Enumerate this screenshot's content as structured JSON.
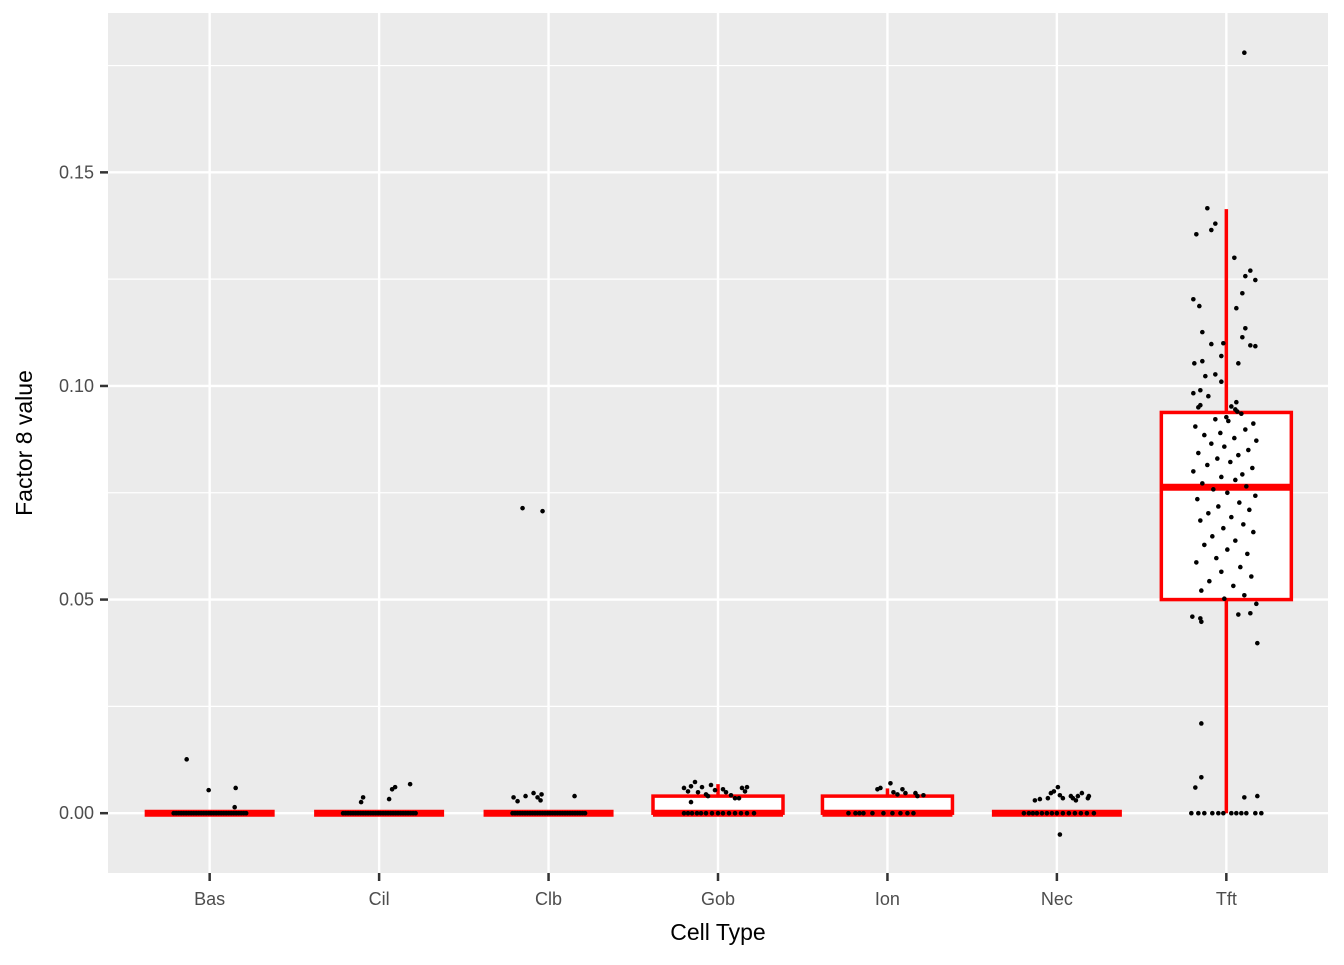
{
  "figure": {
    "xlabel": "Cell Type",
    "ylabel": "Factor 8 value"
  },
  "chart_data": {
    "type": "boxplot",
    "title": "",
    "xlabel": "Cell Type",
    "ylabel": "Factor 8 value",
    "legend": false,
    "grid": true,
    "panel_bg": "#EBEBEB",
    "grid_color": "#FFFFFF",
    "box_color": "#FF0000",
    "box_fill": "#FFFFFF",
    "point_color": "#000000",
    "tick_text_color": "#4D4D4D",
    "categories": [
      "Bas",
      "Cil",
      "Clb",
      "Gob",
      "Ion",
      "Nec",
      "Tft"
    ],
    "ytick_labels": [
      "0.00",
      "0.05",
      "0.10",
      "0.15"
    ],
    "ytick_values": [
      0.0,
      0.05,
      0.1,
      0.15
    ],
    "yminor_values": [
      0.025,
      0.075,
      0.125,
      0.175
    ],
    "ylim": [
      -0.014,
      0.1873
    ],
    "boxes": [
      {
        "category": "Bas",
        "whisker_low": 0.0,
        "q1": 0.0,
        "median": 0.0,
        "q3": 0.0,
        "whisker_high": 0.0
      },
      {
        "category": "Cil",
        "whisker_low": 0.0,
        "q1": 0.0,
        "median": 0.0,
        "q3": 0.0,
        "whisker_high": 0.0
      },
      {
        "category": "Clb",
        "whisker_low": 0.0,
        "q1": 0.0,
        "median": 0.0,
        "q3": 0.0,
        "whisker_high": 0.0
      },
      {
        "category": "Gob",
        "whisker_low": 0.0,
        "q1": 0.0,
        "median": 0.0,
        "q3": 0.004,
        "whisker_high": 0.0068
      },
      {
        "category": "Ion",
        "whisker_low": 0.0,
        "q1": 0.0,
        "median": 0.0,
        "q3": 0.004,
        "whisker_high": 0.0058
      },
      {
        "category": "Nec",
        "whisker_low": 0.0,
        "q1": 0.0,
        "median": 0.0,
        "q3": 0.0,
        "whisker_high": 0.0
      },
      {
        "category": "Tft",
        "whisker_low": 0.0,
        "q1": 0.05,
        "median": 0.0763,
        "q3": 0.0938,
        "whisker_high": 0.1414
      }
    ],
    "jitter_points": {
      "Bas": [
        [
          -36,
          0
        ],
        [
          -33.5,
          0
        ],
        [
          -31,
          0
        ],
        [
          -28.5,
          0
        ],
        [
          -26,
          0
        ],
        [
          -23.5,
          0
        ],
        [
          -21,
          0
        ],
        [
          -18.5,
          0
        ],
        [
          -16,
          0
        ],
        [
          -13.5,
          0
        ],
        [
          -11,
          0
        ],
        [
          -8.5,
          0
        ],
        [
          -6,
          0
        ],
        [
          -3.5,
          0
        ],
        [
          -1,
          0
        ],
        [
          1.5,
          0
        ],
        [
          4,
          0
        ],
        [
          6.5,
          0
        ],
        [
          9,
          0
        ],
        [
          11.5,
          0
        ],
        [
          14,
          0
        ],
        [
          16.5,
          0
        ],
        [
          19,
          0
        ],
        [
          21.5,
          0
        ],
        [
          24,
          0
        ],
        [
          26.5,
          0
        ],
        [
          29,
          0
        ],
        [
          31.5,
          0
        ],
        [
          34,
          0
        ],
        [
          36.5,
          0
        ],
        [
          -23,
          0.0126
        ],
        [
          -1,
          0.0054
        ],
        [
          26,
          0.0059
        ],
        [
          25,
          0.0014
        ]
      ],
      "Cil": [
        [
          -36,
          0
        ],
        [
          -33.5,
          0
        ],
        [
          -31,
          0
        ],
        [
          -28.5,
          0
        ],
        [
          -26,
          0
        ],
        [
          -23.5,
          0
        ],
        [
          -21,
          0
        ],
        [
          -18.5,
          0
        ],
        [
          -16,
          0
        ],
        [
          -13.5,
          0
        ],
        [
          -11,
          0
        ],
        [
          -8.5,
          0
        ],
        [
          -6,
          0
        ],
        [
          -3.5,
          0
        ],
        [
          -1,
          0
        ],
        [
          1.5,
          0
        ],
        [
          4,
          0
        ],
        [
          6.5,
          0
        ],
        [
          9,
          0
        ],
        [
          11.5,
          0
        ],
        [
          14,
          0
        ],
        [
          16.5,
          0
        ],
        [
          19,
          0
        ],
        [
          21.5,
          0
        ],
        [
          24,
          0
        ],
        [
          26.5,
          0
        ],
        [
          29,
          0
        ],
        [
          31.5,
          0
        ],
        [
          34,
          0
        ],
        [
          36.5,
          0
        ],
        [
          -18,
          0.0026
        ],
        [
          -16,
          0.0037
        ],
        [
          10,
          0.0033
        ],
        [
          13,
          0.0056
        ],
        [
          16,
          0.0061
        ],
        [
          31,
          0.0068
        ]
      ],
      "Clb": [
        [
          -36,
          0
        ],
        [
          -33.5,
          0
        ],
        [
          -31,
          0
        ],
        [
          -28.5,
          0
        ],
        [
          -26,
          0
        ],
        [
          -23.5,
          0
        ],
        [
          -21,
          0
        ],
        [
          -18.5,
          0
        ],
        [
          -16,
          0
        ],
        [
          -13.5,
          0
        ],
        [
          -11,
          0
        ],
        [
          -8.5,
          0
        ],
        [
          -6,
          0
        ],
        [
          -3.5,
          0
        ],
        [
          -1,
          0
        ],
        [
          1.5,
          0
        ],
        [
          4,
          0
        ],
        [
          6.5,
          0
        ],
        [
          9,
          0
        ],
        [
          11.5,
          0
        ],
        [
          14,
          0
        ],
        [
          16.5,
          0
        ],
        [
          19,
          0
        ],
        [
          21.5,
          0
        ],
        [
          24,
          0
        ],
        [
          26.5,
          0
        ],
        [
          29,
          0
        ],
        [
          31.5,
          0
        ],
        [
          34,
          0
        ],
        [
          36.5,
          0
        ],
        [
          -35,
          0.0037
        ],
        [
          -31,
          0.0028
        ],
        [
          -23,
          0.004
        ],
        [
          -15,
          0.0047
        ],
        [
          -11,
          0.0037
        ],
        [
          -8,
          0.003
        ],
        [
          -7,
          0.0044
        ],
        [
          26,
          0.004
        ],
        [
          -26,
          0.0714
        ],
        [
          -6,
          0.0707
        ]
      ],
      "Gob": [
        [
          -34,
          0
        ],
        [
          -30,
          0
        ],
        [
          -26,
          0
        ],
        [
          -21,
          0
        ],
        [
          -17,
          0
        ],
        [
          -12,
          0
        ],
        [
          -6,
          0
        ],
        [
          0,
          0
        ],
        [
          5,
          0
        ],
        [
          11,
          0
        ],
        [
          17,
          0
        ],
        [
          23,
          0
        ],
        [
          29,
          0
        ],
        [
          36,
          0
        ],
        [
          -34,
          0.0059
        ],
        [
          -30,
          0.0051
        ],
        [
          -27,
          0.0063
        ],
        [
          -23,
          0.0073
        ],
        [
          -20,
          0.0049
        ],
        [
          -16,
          0.0061
        ],
        [
          -12,
          0.0044
        ],
        [
          -10,
          0.004
        ],
        [
          -7,
          0.0066
        ],
        [
          -3,
          0.0054
        ],
        [
          5,
          0.0056
        ],
        [
          8,
          0.0049
        ],
        [
          13,
          0.0042
        ],
        [
          17,
          0.0035
        ],
        [
          21,
          0.0035
        ],
        [
          24,
          0.0059
        ],
        [
          27,
          0.0051
        ],
        [
          29,
          0.0061
        ],
        [
          -27,
          0.0026
        ]
      ],
      "Ion": [
        [
          -39,
          0
        ],
        [
          -32,
          0
        ],
        [
          -28,
          0
        ],
        [
          -24,
          0
        ],
        [
          -15,
          0
        ],
        [
          -4,
          0
        ],
        [
          5,
          0
        ],
        [
          13,
          0
        ],
        [
          20,
          0
        ],
        [
          26,
          0
        ],
        [
          -10,
          0.0056
        ],
        [
          -7,
          0.0059
        ],
        [
          3,
          0.007
        ],
        [
          6,
          0.0049
        ],
        [
          10,
          0.0044
        ],
        [
          15,
          0.0056
        ],
        [
          18,
          0.0047
        ],
        [
          28,
          0.0047
        ],
        [
          30,
          0.004
        ],
        [
          36,
          0.0042
        ]
      ],
      "Nec": [
        [
          -33,
          0
        ],
        [
          -28,
          0
        ],
        [
          -24,
          0
        ],
        [
          -20,
          0
        ],
        [
          -15,
          0
        ],
        [
          -10,
          0
        ],
        [
          -5,
          0
        ],
        [
          0,
          0
        ],
        [
          6,
          0
        ],
        [
          12,
          0
        ],
        [
          18,
          0
        ],
        [
          24,
          0
        ],
        [
          30,
          0
        ],
        [
          37,
          0
        ],
        [
          -22,
          0.003
        ],
        [
          -17,
          0.0033
        ],
        [
          -9,
          0.0035
        ],
        [
          -6,
          0.0047
        ],
        [
          -3,
          0.0051
        ],
        [
          1,
          0.0061
        ],
        [
          3,
          0.0042
        ],
        [
          6,
          0.0035
        ],
        [
          14,
          0.004
        ],
        [
          16,
          0.0035
        ],
        [
          19,
          0.003
        ],
        [
          21,
          0.004
        ],
        [
          25,
          0.0047
        ],
        [
          31,
          0.0035
        ],
        [
          32,
          0.004
        ],
        [
          3,
          -0.005
        ]
      ],
      "Tft": [
        [
          18,
          0.178
        ],
        [
          -19,
          0.1416
        ],
        [
          -11,
          0.138
        ],
        [
          -15,
          0.1365
        ],
        [
          -30,
          0.1355
        ],
        [
          8,
          0.13
        ],
        [
          24,
          0.127
        ],
        [
          19,
          0.1257
        ],
        [
          29,
          0.1248
        ],
        [
          16,
          0.1217
        ],
        [
          -33,
          0.1203
        ],
        [
          -27,
          0.1187
        ],
        [
          10,
          0.1182
        ],
        [
          19,
          0.1135
        ],
        [
          -24,
          0.1126
        ],
        [
          16,
          0.1114
        ],
        [
          -15,
          0.1098
        ],
        [
          -3,
          0.11
        ],
        [
          24,
          0.1095
        ],
        [
          29,
          0.1093
        ],
        [
          -5,
          0.107
        ],
        [
          -32,
          0.1053
        ],
        [
          -24,
          0.1058
        ],
        [
          12,
          0.1053
        ],
        [
          -11,
          0.1027
        ],
        [
          -21,
          0.1023
        ],
        [
          -5,
          0.101
        ],
        [
          -33,
          0.0983
        ],
        [
          -26,
          0.099
        ],
        [
          -18,
          0.0976
        ],
        [
          -28,
          0.095
        ],
        [
          10,
          0.0962
        ],
        [
          11,
          0.094
        ],
        [
          0,
          0.0927
        ],
        [
          -26,
          0.0955
        ],
        [
          5,
          0.0952
        ],
        [
          9,
          0.0945
        ],
        [
          15,
          0.0935
        ],
        [
          -11,
          0.0922
        ],
        [
          2,
          0.0918
        ],
        [
          27,
          0.0912
        ],
        [
          -31,
          0.0905
        ],
        [
          19,
          0.0898
        ],
        [
          -6,
          0.089
        ],
        [
          -22,
          0.0885
        ],
        [
          8,
          0.0878
        ],
        [
          30,
          0.0872
        ],
        [
          -15,
          0.0865
        ],
        [
          -2,
          0.0858
        ],
        [
          22,
          0.085
        ],
        [
          -28,
          0.0843
        ],
        [
          12,
          0.0838
        ],
        [
          -9,
          0.083
        ],
        [
          4,
          0.0822
        ],
        [
          -19,
          0.0815
        ],
        [
          26,
          0.0808
        ],
        [
          -33,
          0.08
        ],
        [
          16,
          0.0793
        ],
        [
          -5,
          0.0787
        ],
        [
          9,
          0.078
        ],
        [
          -24,
          0.0772
        ],
        [
          20,
          0.0765
        ],
        [
          -13,
          0.0758
        ],
        [
          1,
          0.075
        ],
        [
          29,
          0.0743
        ],
        [
          -29,
          0.0735
        ],
        [
          13,
          0.0727
        ],
        [
          -8,
          0.0718
        ],
        [
          23,
          0.071
        ],
        [
          -18,
          0.0702
        ],
        [
          5,
          0.0693
        ],
        [
          -26,
          0.0685
        ],
        [
          17,
          0.0676
        ],
        [
          -3,
          0.0667
        ],
        [
          27,
          0.0658
        ],
        [
          -14,
          0.0648
        ],
        [
          9,
          0.0638
        ],
        [
          -22,
          0.0628
        ],
        [
          1,
          0.0617
        ],
        [
          21,
          0.0607
        ],
        [
          -10,
          0.0597
        ],
        [
          -30,
          0.0587
        ],
        [
          14,
          0.0576
        ],
        [
          -5,
          0.0565
        ],
        [
          25,
          0.0554
        ],
        [
          -17,
          0.0543
        ],
        [
          7,
          0.0532
        ],
        [
          -25,
          0.0521
        ],
        [
          18,
          0.051
        ],
        [
          -2,
          0.0502
        ],
        [
          -34,
          0.046
        ],
        [
          -26,
          0.0456
        ],
        [
          -25,
          0.0448
        ],
        [
          12,
          0.0465
        ],
        [
          24,
          0.0468
        ],
        [
          30,
          0.049
        ],
        [
          31,
          0.0398
        ],
        [
          -25,
          0.021
        ],
        [
          -25,
          0.0084
        ],
        [
          -31,
          0.006
        ],
        [
          18,
          0.0037
        ],
        [
          31,
          0.004
        ],
        [
          -35,
          0
        ],
        [
          -28,
          0
        ],
        [
          -22,
          0
        ],
        [
          -14,
          0
        ],
        [
          -8,
          0
        ],
        [
          -3,
          0
        ],
        [
          5,
          0
        ],
        [
          10,
          0
        ],
        [
          15,
          0
        ],
        [
          20,
          0
        ],
        [
          29,
          0
        ],
        [
          35,
          0
        ]
      ]
    }
  }
}
